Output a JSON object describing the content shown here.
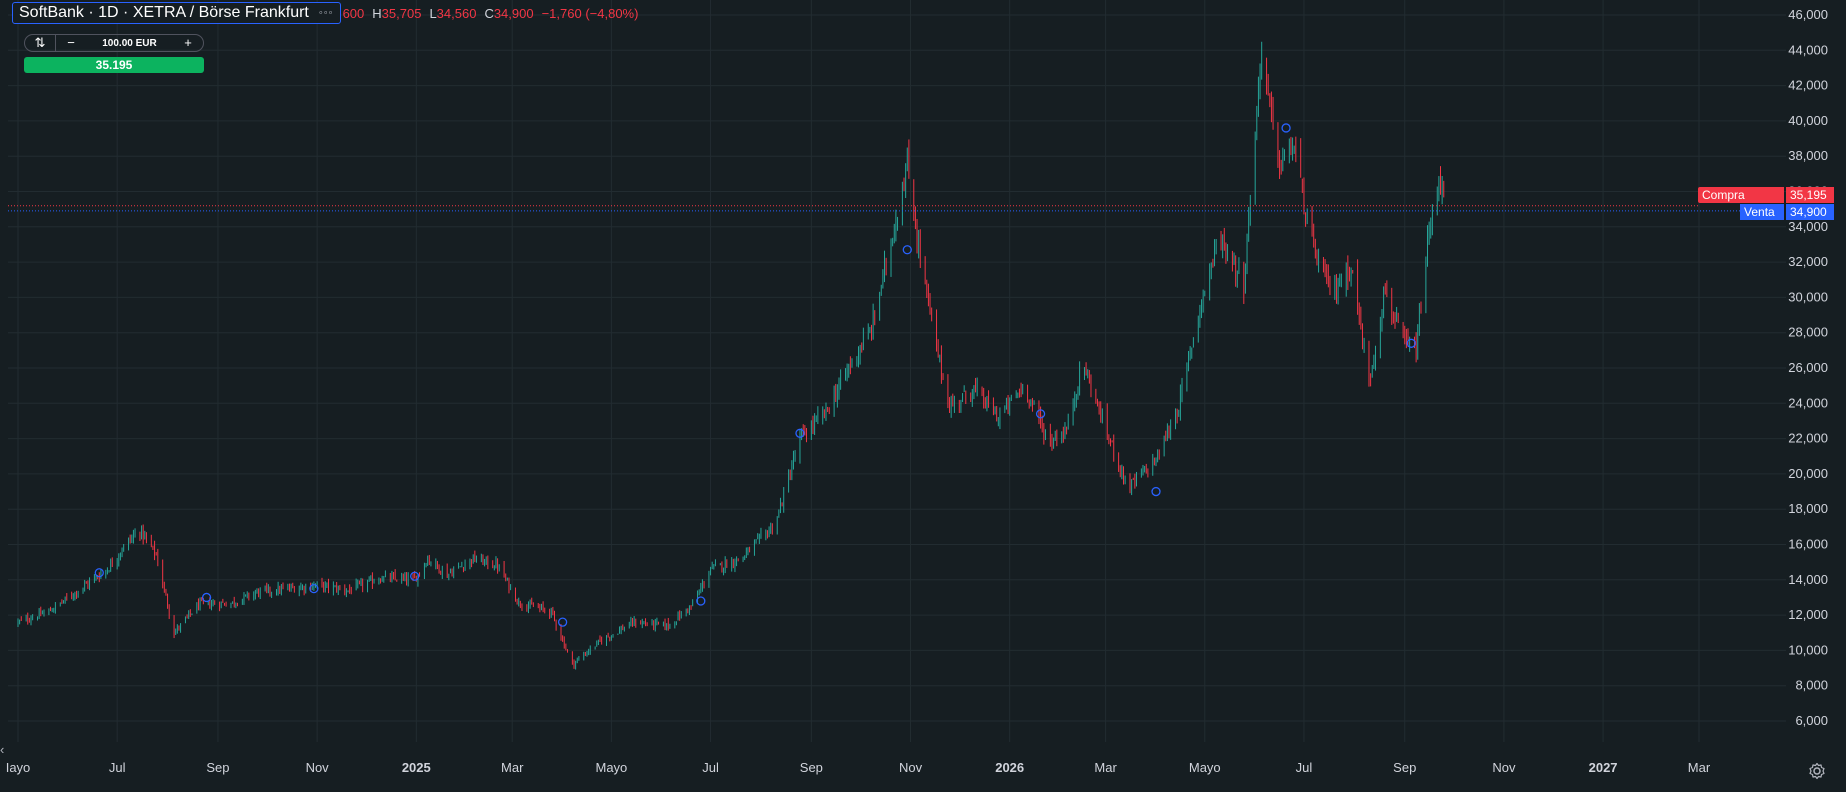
{
  "header": {
    "symbol_title": "SoftBank · 1D · XETRA / Börse Frankfurt",
    "more_icon": "more-dots-icon",
    "ohlc": {
      "open_value": "600",
      "high_key": "H",
      "high_value": "35,705",
      "low_key": "L",
      "low_value": "34,560",
      "close_key": "C",
      "close_value": "34,900",
      "change": "−1,760 (−4,80%)"
    }
  },
  "trade_widget": {
    "flip_icon": "swap-icon",
    "minus_label": "−",
    "quantity": "100.00 EUR",
    "plus_label": "+",
    "price": "35.195"
  },
  "price_tags": {
    "buy_label": "Compra",
    "buy_value": "35,195",
    "sell_label": "Venta",
    "sell_value": "34,900"
  },
  "colors": {
    "background": "#161e22",
    "up": "#26a69a",
    "down": "#f23645",
    "buy_tag": "#f23645",
    "sell_tag": "#2962ff",
    "event_marker": "#2962ff"
  },
  "ui": {
    "scroll_left_icon": "‹",
    "settings_icon": "settings-icon"
  },
  "chart_data": {
    "type": "candlestick",
    "title": "SoftBank · 1D · XETRA / Börse Frankfurt",
    "xlabel": "",
    "ylabel": "",
    "ylim": [
      4000,
      47000
    ],
    "grid": true,
    "y_ticks": [
      "46,000",
      "44,000",
      "42,000",
      "40,000",
      "38,000",
      "36,000",
      "34,000",
      "32,000",
      "30,000",
      "28,000",
      "26,000",
      "24,000",
      "22,000",
      "20,000",
      "18,000",
      "16,000",
      "14,000",
      "12,000",
      "10,000",
      "8,000",
      "6,000"
    ],
    "x_ticks": [
      {
        "label": "Iayo",
        "date": "2024-05-01",
        "bold": false
      },
      {
        "label": "Jul",
        "date": "2024-07-01",
        "bold": false
      },
      {
        "label": "Sep",
        "date": "2024-09-01",
        "bold": false
      },
      {
        "label": "Nov",
        "date": "2024-11-01",
        "bold": false
      },
      {
        "label": "2025",
        "date": "2025-01-01",
        "bold": true
      },
      {
        "label": "Mar",
        "date": "2025-03-01",
        "bold": false
      },
      {
        "label": "Mayo",
        "date": "2025-05-01",
        "bold": false
      },
      {
        "label": "Jul",
        "date": "2025-07-01",
        "bold": false
      },
      {
        "label": "Sep",
        "date": "2025-09-01",
        "bold": false
      },
      {
        "label": "Nov",
        "date": "2025-11-01",
        "bold": false
      },
      {
        "label": "2026",
        "date": "2026-01-01",
        "bold": true
      },
      {
        "label": "Mar",
        "date": "2026-03-01",
        "bold": false
      },
      {
        "label": "Mayo",
        "date": "2026-05-01",
        "bold": false
      },
      {
        "label": "Jul",
        "date": "2026-07-01",
        "bold": false
      },
      {
        "label": "Sep",
        "date": "2026-09-01",
        "bold": false
      },
      {
        "label": "Nov",
        "date": "2026-11-01",
        "bold": false
      },
      {
        "label": "2027",
        "date": "2027-01-01",
        "bold": true
      },
      {
        "label": "Mar",
        "date": "2027-03-01",
        "bold": false
      }
    ],
    "price_path": [
      [
        "2024-05-01",
        11600
      ],
      [
        "2024-05-20",
        12200
      ],
      [
        "2024-06-10",
        13600
      ],
      [
        "2024-06-25",
        14600
      ],
      [
        "2024-07-08",
        16200
      ],
      [
        "2024-07-15",
        16800
      ],
      [
        "2024-07-25",
        15400
      ],
      [
        "2024-08-05",
        11000
      ],
      [
        "2024-08-20",
        12600
      ],
      [
        "2024-09-10",
        12700
      ],
      [
        "2024-09-25",
        13300
      ],
      [
        "2024-10-15",
        13500
      ],
      [
        "2024-11-01",
        13700
      ],
      [
        "2024-11-20",
        13400
      ],
      [
        "2024-12-10",
        14100
      ],
      [
        "2024-12-31",
        14000
      ],
      [
        "2025-01-08",
        15200
      ],
      [
        "2025-01-20",
        14300
      ],
      [
        "2025-02-05",
        15200
      ],
      [
        "2025-02-20",
        14800
      ],
      [
        "2025-03-05",
        12700
      ],
      [
        "2025-03-25",
        12200
      ],
      [
        "2025-04-07",
        9200
      ],
      [
        "2025-04-25",
        10600
      ],
      [
        "2025-05-15",
        11600
      ],
      [
        "2025-06-05",
        11400
      ],
      [
        "2025-06-20",
        12600
      ],
      [
        "2025-07-01",
        14600
      ],
      [
        "2025-07-20",
        15200
      ],
      [
        "2025-08-10",
        17200
      ],
      [
        "2025-08-25",
        22000
      ],
      [
        "2025-09-10",
        23500
      ],
      [
        "2025-09-25",
        26200
      ],
      [
        "2025-10-08",
        28200
      ],
      [
        "2025-10-20",
        33200
      ],
      [
        "2025-10-30",
        37500
      ],
      [
        "2025-11-05",
        33500
      ],
      [
        "2025-11-15",
        28000
      ],
      [
        "2025-11-25",
        23800
      ],
      [
        "2025-12-10",
        24800
      ],
      [
        "2025-12-25",
        23200
      ],
      [
        "2026-01-10",
        25000
      ],
      [
        "2026-01-25",
        21800
      ],
      [
        "2026-02-05",
        22500
      ],
      [
        "2026-02-15",
        26300
      ],
      [
        "2026-03-01",
        22500
      ],
      [
        "2026-03-15",
        19200
      ],
      [
        "2026-04-01",
        20800
      ],
      [
        "2026-04-15",
        23800
      ],
      [
        "2026-04-28",
        29500
      ],
      [
        "2026-05-10",
        33500
      ],
      [
        "2026-05-25",
        30800
      ],
      [
        "2026-06-05",
        44200
      ],
      [
        "2026-06-15",
        37500
      ],
      [
        "2026-06-25",
        38600
      ],
      [
        "2026-07-05",
        33200
      ],
      [
        "2026-07-18",
        30200
      ],
      [
        "2026-07-30",
        31800
      ],
      [
        "2026-08-10",
        25200
      ],
      [
        "2026-08-20",
        30500
      ],
      [
        "2026-08-30",
        27500
      ],
      [
        "2026-09-08",
        27000
      ],
      [
        "2026-09-15",
        33000
      ],
      [
        "2026-09-22",
        36800
      ],
      [
        "2026-09-28",
        34900
      ]
    ],
    "event_markers": [
      [
        "2024-06-20",
        14400
      ],
      [
        "2024-08-25",
        13000
      ],
      [
        "2024-10-30",
        13500
      ],
      [
        "2024-12-31",
        14200
      ],
      [
        "2025-04-01",
        11600
      ],
      [
        "2025-06-25",
        12800
      ],
      [
        "2025-08-25",
        22300
      ],
      [
        "2025-10-30",
        32700
      ],
      [
        "2026-01-20",
        23400
      ],
      [
        "2026-04-01",
        19000
      ],
      [
        "2026-06-20",
        39600
      ],
      [
        "2026-09-05",
        27400
      ]
    ],
    "last_price": {
      "buy": 35195,
      "sell": 34900
    }
  }
}
